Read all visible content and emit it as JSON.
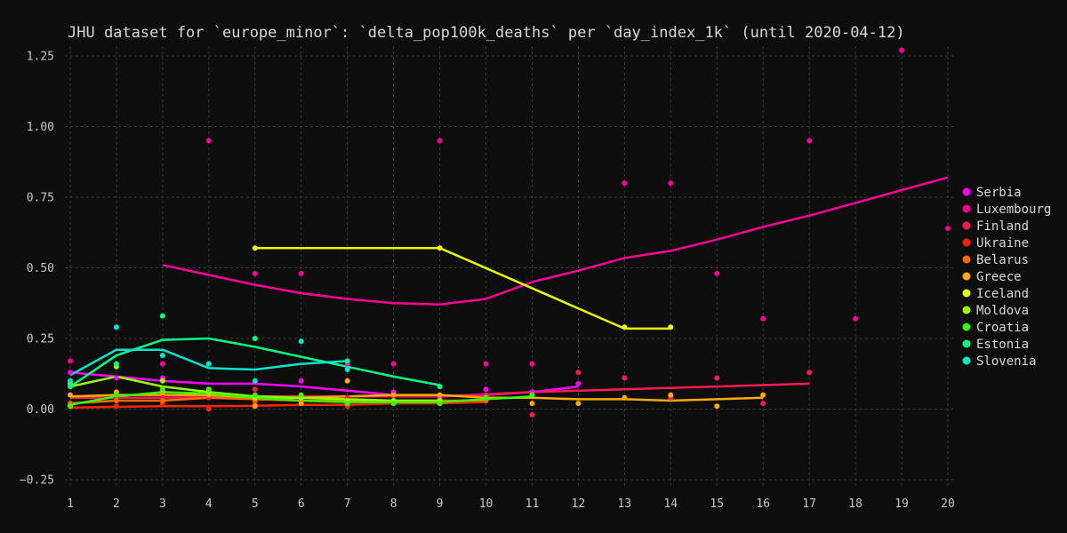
{
  "chart_data": {
    "type": "scatter",
    "title": "JHU dataset for `europe_minor`: `delta_pop100k_deaths` per `day_index_1k` (until 2020-04-12)",
    "xlabel": "",
    "ylabel": "",
    "xlim": [
      1,
      20
    ],
    "ylim": [
      -0.25,
      1.25
    ],
    "xticks": [
      1,
      2,
      3,
      4,
      5,
      6,
      7,
      8,
      9,
      10,
      11,
      12,
      13,
      14,
      15,
      16,
      17,
      18,
      19,
      20
    ],
    "yticks": [
      -0.25,
      0.0,
      0.25,
      0.5,
      0.75,
      1.0,
      1.25
    ],
    "ytick_labels": [
      "−0.25",
      "0.00",
      "0.25",
      "0.50",
      "0.75",
      "1.00",
      "1.25"
    ],
    "grid": true,
    "legend_position": "right",
    "series": [
      {
        "name": "Serbia",
        "color": "#ff00ff",
        "points": [
          [
            1,
            0.13
          ],
          [
            2,
            0.11
          ],
          [
            3,
            0.11
          ],
          [
            4,
            0.07
          ],
          [
            5,
            0.1
          ],
          [
            6,
            0.1
          ],
          [
            7,
            0.16
          ],
          [
            8,
            0.06
          ],
          [
            9,
            0.04
          ],
          [
            10,
            0.07
          ],
          [
            11,
            0.06
          ],
          [
            12,
            0.09
          ]
        ],
        "trend": [
          [
            1,
            0.13
          ],
          [
            2,
            0.115
          ],
          [
            3,
            0.1
          ],
          [
            4,
            0.09
          ],
          [
            5,
            0.09
          ],
          [
            6,
            0.08
          ],
          [
            7,
            0.065
          ],
          [
            8,
            0.05
          ],
          [
            9,
            0.045
          ],
          [
            10,
            0.05
          ],
          [
            11,
            0.06
          ],
          [
            12,
            0.08
          ]
        ]
      },
      {
        "name": "Luxembourg",
        "color": "#ff0099",
        "points": [
          [
            1,
            0.17
          ],
          [
            3,
            0.16
          ],
          [
            4,
            0.95
          ],
          [
            5,
            0.48
          ],
          [
            6,
            0.48
          ],
          [
            8,
            0.16
          ],
          [
            9,
            0.95
          ],
          [
            10,
            0.16
          ],
          [
            11,
            0.16
          ],
          [
            13,
            0.8
          ],
          [
            14,
            0.8
          ],
          [
            15,
            0.48
          ],
          [
            16,
            0.32
          ],
          [
            17,
            0.95
          ],
          [
            18,
            0.32
          ],
          [
            19,
            1.27
          ],
          [
            20,
            0.64
          ]
        ],
        "trend": [
          [
            3,
            0.51
          ],
          [
            4,
            0.475
          ],
          [
            5,
            0.44
          ],
          [
            6,
            0.41
          ],
          [
            7,
            0.39
          ],
          [
            8,
            0.375
          ],
          [
            9,
            0.37
          ],
          [
            10,
            0.39
          ],
          [
            11,
            0.45
          ],
          [
            12,
            0.49
          ],
          [
            13,
            0.535
          ],
          [
            14,
            0.56
          ],
          [
            15,
            0.6
          ],
          [
            16,
            0.645
          ],
          [
            17,
            0.685
          ],
          [
            18,
            0.73
          ],
          [
            19,
            0.775
          ],
          [
            20,
            0.82
          ]
        ]
      },
      {
        "name": "Finland",
        "color": "#ff1a55",
        "points": [
          [
            1,
            0.02
          ],
          [
            2,
            0.04
          ],
          [
            3,
            0.04
          ],
          [
            4,
            0.04
          ],
          [
            5,
            0.07
          ],
          [
            6,
            0.05
          ],
          [
            7,
            0.04
          ],
          [
            8,
            0.05
          ],
          [
            9,
            0.02
          ],
          [
            10,
            0.05
          ],
          [
            11,
            -0.02
          ],
          [
            12,
            0.13
          ],
          [
            13,
            0.11
          ],
          [
            14,
            0.04
          ],
          [
            15,
            0.11
          ],
          [
            16,
            0.02
          ],
          [
            17,
            0.13
          ]
        ],
        "trend": [
          [
            1,
            0.04
          ],
          [
            3,
            0.04
          ],
          [
            5,
            0.045
          ],
          [
            7,
            0.045
          ],
          [
            9,
            0.045
          ],
          [
            11,
            0.06
          ],
          [
            13,
            0.07
          ],
          [
            15,
            0.08
          ],
          [
            17,
            0.09
          ]
        ]
      },
      {
        "name": "Ukraine",
        "color": "#ff2200",
        "points": [
          [
            1,
            0.01
          ],
          [
            2,
            0.01
          ],
          [
            3,
            0.02
          ],
          [
            4,
            0.0
          ],
          [
            5,
            0.02
          ],
          [
            6,
            0.02
          ],
          [
            7,
            0.01
          ],
          [
            8,
            0.02
          ],
          [
            9,
            0.02
          ],
          [
            10,
            0.03
          ]
        ],
        "trend": [
          [
            1,
            0.005
          ],
          [
            2,
            0.008
          ],
          [
            3,
            0.01
          ],
          [
            4,
            0.01
          ],
          [
            5,
            0.012
          ],
          [
            6,
            0.015
          ],
          [
            7,
            0.015
          ],
          [
            8,
            0.02
          ],
          [
            9,
            0.02
          ],
          [
            10,
            0.025
          ]
        ]
      },
      {
        "name": "Belarus",
        "color": "#ff6a00",
        "points": [
          [
            1,
            0.02
          ],
          [
            2,
            0.03
          ],
          [
            3,
            0.03
          ],
          [
            4,
            0.05
          ],
          [
            5,
            0.03
          ],
          [
            6,
            0.03
          ],
          [
            7,
            0.02
          ],
          [
            8,
            0.03
          ],
          [
            9,
            0.03
          ],
          [
            10,
            0.03
          ]
        ],
        "trend": [
          [
            1,
            0.02
          ],
          [
            2,
            0.03
          ],
          [
            3,
            0.03
          ],
          [
            4,
            0.04
          ],
          [
            5,
            0.035
          ],
          [
            6,
            0.03
          ],
          [
            7,
            0.03
          ],
          [
            8,
            0.03
          ],
          [
            9,
            0.03
          ],
          [
            10,
            0.03
          ]
        ]
      },
      {
        "name": "Greece",
        "color": "#ffaa00",
        "points": [
          [
            1,
            0.05
          ],
          [
            2,
            0.06
          ],
          [
            3,
            0.06
          ],
          [
            4,
            0.05
          ],
          [
            5,
            0.01
          ],
          [
            6,
            0.02
          ],
          [
            7,
            0.1
          ],
          [
            8,
            0.05
          ],
          [
            9,
            0.05
          ],
          [
            10,
            0.04
          ],
          [
            11,
            0.02
          ],
          [
            12,
            0.02
          ],
          [
            13,
            0.04
          ],
          [
            14,
            0.05
          ],
          [
            15,
            0.01
          ],
          [
            16,
            0.05
          ]
        ],
        "trend": [
          [
            1,
            0.045
          ],
          [
            2,
            0.05
          ],
          [
            3,
            0.05
          ],
          [
            4,
            0.05
          ],
          [
            5,
            0.04
          ],
          [
            6,
            0.04
          ],
          [
            7,
            0.045
          ],
          [
            8,
            0.05
          ],
          [
            9,
            0.05
          ],
          [
            10,
            0.04
          ],
          [
            11,
            0.04
          ],
          [
            12,
            0.035
          ],
          [
            13,
            0.035
          ],
          [
            14,
            0.03
          ],
          [
            15,
            0.035
          ],
          [
            16,
            0.04
          ]
        ]
      },
      {
        "name": "Iceland",
        "color": "#e6ff00",
        "points": [
          [
            5,
            0.57
          ],
          [
            9,
            0.57
          ],
          [
            13,
            0.29
          ],
          [
            14,
            0.29
          ]
        ],
        "trend": [
          [
            5,
            0.57
          ],
          [
            9,
            0.57
          ],
          [
            13,
            0.285
          ],
          [
            14,
            0.285
          ]
        ]
      },
      {
        "name": "Moldova",
        "color": "#99ff00",
        "points": [
          [
            1,
            0.09
          ],
          [
            2,
            0.15
          ],
          [
            3,
            0.1
          ],
          [
            4,
            0.06
          ],
          [
            5,
            0.04
          ],
          [
            6,
            0.04
          ],
          [
            7,
            0.03
          ],
          [
            8,
            0.03
          ],
          [
            9,
            0.03
          ]
        ],
        "trend": [
          [
            1,
            0.08
          ],
          [
            2,
            0.115
          ],
          [
            3,
            0.08
          ],
          [
            4,
            0.06
          ],
          [
            5,
            0.045
          ],
          [
            6,
            0.04
          ],
          [
            7,
            0.035
          ],
          [
            8,
            0.03
          ],
          [
            9,
            0.03
          ]
        ]
      },
      {
        "name": "Croatia",
        "color": "#33ff00",
        "points": [
          [
            1,
            0.01
          ],
          [
            2,
            0.05
          ],
          [
            3,
            0.07
          ],
          [
            4,
            0.07
          ],
          [
            5,
            0.05
          ],
          [
            6,
            0.05
          ],
          [
            7,
            0.02
          ],
          [
            8,
            0.02
          ],
          [
            9,
            0.02
          ],
          [
            10,
            0.04
          ],
          [
            11,
            0.05
          ]
        ],
        "trend": [
          [
            1,
            0.015
          ],
          [
            2,
            0.045
          ],
          [
            3,
            0.06
          ],
          [
            4,
            0.055
          ],
          [
            5,
            0.04
          ],
          [
            6,
            0.03
          ],
          [
            7,
            0.025
          ],
          [
            8,
            0.025
          ],
          [
            9,
            0.025
          ],
          [
            10,
            0.035
          ],
          [
            11,
            0.045
          ]
        ]
      },
      {
        "name": "Estonia",
        "color": "#00ff7f",
        "points": [
          [
            1,
            0.08
          ],
          [
            2,
            0.16
          ],
          [
            3,
            0.33
          ],
          [
            4,
            0.16
          ],
          [
            5,
            0.25
          ],
          [
            7,
            0.17
          ],
          [
            9,
            0.08
          ]
        ],
        "trend": [
          [
            1,
            0.08
          ],
          [
            2,
            0.19
          ],
          [
            3,
            0.245
          ],
          [
            4,
            0.25
          ],
          [
            5,
            0.22
          ],
          [
            6,
            0.185
          ],
          [
            7,
            0.15
          ],
          [
            8,
            0.115
          ],
          [
            9,
            0.085
          ]
        ]
      },
      {
        "name": "Slovenia",
        "color": "#00e5cc",
        "points": [
          [
            1,
            0.1
          ],
          [
            2,
            0.29
          ],
          [
            3,
            0.19
          ],
          [
            4,
            0.16
          ],
          [
            5,
            0.1
          ],
          [
            6,
            0.24
          ],
          [
            7,
            0.14
          ]
        ],
        "trend": [
          [
            1,
            0.12
          ],
          [
            2,
            0.21
          ],
          [
            3,
            0.21
          ],
          [
            4,
            0.145
          ],
          [
            5,
            0.14
          ],
          [
            6,
            0.16
          ],
          [
            7,
            0.17
          ]
        ]
      }
    ]
  }
}
